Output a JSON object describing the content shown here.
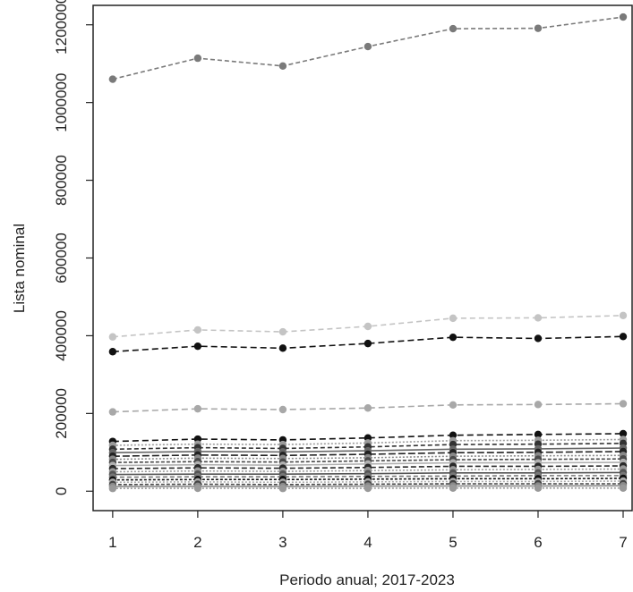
{
  "chart_data": {
    "type": "line",
    "xlabel": "Periodo anual; 2017-2023",
    "ylabel": "Lista nominal",
    "x": [
      1,
      2,
      3,
      4,
      5,
      6,
      7
    ],
    "xlim": [
      0.77,
      7
    ],
    "ylim": [
      -50000,
      1250000
    ],
    "yticks": [
      0,
      200000,
      400000,
      600000,
      800000,
      1000000,
      1200000
    ],
    "ytick_labels": [
      "0",
      "200000",
      "400000",
      "600000",
      "800000",
      "1000000",
      "1200000"
    ],
    "xtick_labels": [
      "1",
      "2",
      "3",
      "4",
      "5",
      "6",
      "7"
    ],
    "grid": false,
    "series": [
      {
        "values": [
          1060000,
          1114000,
          1094000,
          1144000,
          1190000,
          1191000,
          1220000
        ],
        "color": "#7a7a7a",
        "dash": "5,3"
      },
      {
        "values": [
          397000,
          415000,
          410000,
          424000,
          445000,
          446000,
          452000
        ],
        "color": "#c4c4c4",
        "dash": "6,4"
      },
      {
        "values": [
          359000,
          373000,
          368000,
          380000,
          396000,
          393000,
          398000
        ],
        "color": "#111111",
        "dash": "7,4"
      },
      {
        "values": [
          204000,
          212000,
          210000,
          214000,
          222000,
          223000,
          225000
        ],
        "color": "#a8a8a8",
        "dash": "7,4"
      },
      {
        "values": [
          128000,
          134000,
          132000,
          137000,
          144000,
          146000,
          148000
        ],
        "color": "#111111",
        "dash": "7,4"
      },
      {
        "values": [
          118000,
          121000,
          120000,
          124000,
          130000,
          131000,
          133000
        ],
        "color": "#9a9a9a",
        "dash": "2,2"
      },
      {
        "values": [
          108000,
          112000,
          110000,
          114000,
          120000,
          121000,
          123000
        ],
        "color": "#333333",
        "dash": "5,3"
      },
      {
        "values": [
          99000,
          102000,
          101000,
          104000,
          108000,
          109000,
          111000
        ],
        "color": "#666666",
        "dash": "none"
      },
      {
        "values": [
          90000,
          93000,
          92000,
          95000,
          99000,
          100000,
          102000
        ],
        "color": "#222222",
        "dash": "8,3"
      },
      {
        "values": [
          82000,
          85000,
          84000,
          86000,
          90000,
          91000,
          92000
        ],
        "color": "#888888",
        "dash": "2,2"
      },
      {
        "values": [
          74000,
          76000,
          75000,
          78000,
          81000,
          82000,
          83000
        ],
        "color": "#4a4a4a",
        "dash": "4,2"
      },
      {
        "values": [
          66000,
          68000,
          67000,
          70000,
          73000,
          73000,
          74000
        ],
        "color": "#b0b0b0",
        "dash": "none"
      },
      {
        "values": [
          58000,
          60000,
          59000,
          61000,
          64000,
          64000,
          65000
        ],
        "color": "#2a2a2a",
        "dash": "6,3"
      },
      {
        "values": [
          50000,
          52000,
          51000,
          53000,
          55000,
          56000,
          57000
        ],
        "color": "#9a9a9a",
        "dash": "2,2"
      },
      {
        "values": [
          43000,
          44000,
          44000,
          45000,
          47000,
          47000,
          48000
        ],
        "color": "#555555",
        "dash": "none"
      },
      {
        "values": [
          36000,
          37000,
          37000,
          38000,
          39000,
          40000,
          40000
        ],
        "color": "#777777",
        "dash": "5,3"
      },
      {
        "values": [
          29000,
          30000,
          30000,
          31000,
          32000,
          32000,
          33000
        ],
        "color": "#111111",
        "dash": "3,2"
      },
      {
        "values": [
          23000,
          24000,
          23000,
          24000,
          25000,
          25000,
          26000
        ],
        "color": "#aaaaaa",
        "dash": "2,2"
      },
      {
        "values": [
          17000,
          18000,
          17000,
          18000,
          19000,
          19000,
          19000
        ],
        "color": "#444444",
        "dash": "4,2"
      },
      {
        "values": [
          12000,
          12500,
          12000,
          13000,
          13500,
          13500,
          14000
        ],
        "color": "#8a8a8a",
        "dash": "none"
      },
      {
        "values": [
          7000,
          7500,
          7000,
          7500,
          8000,
          8000,
          8000
        ],
        "color": "#999999",
        "dash": "2,2"
      }
    ]
  }
}
